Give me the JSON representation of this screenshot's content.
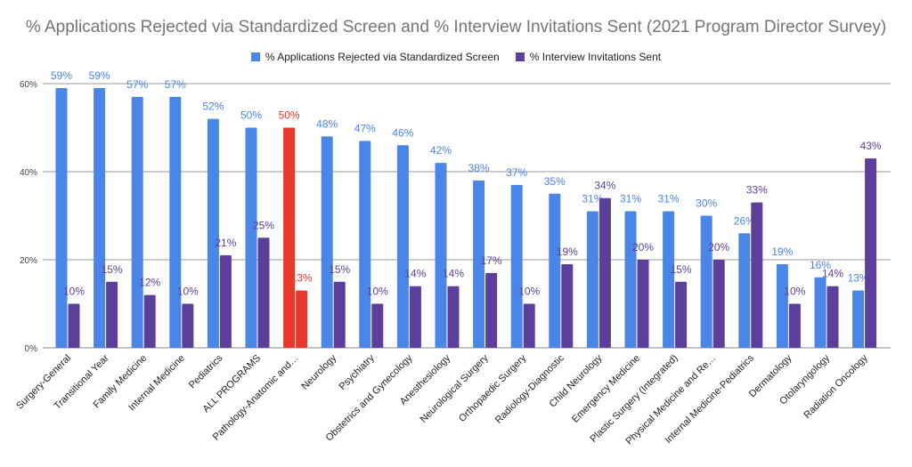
{
  "chart_data": {
    "type": "bar",
    "title": "% Applications Rejected via Standardized Screen and % Interview Invitations Sent (2021 Program Director Survey)",
    "categories": [
      "Surgery-General",
      "Transitional Year",
      "Family Medicine",
      "Internal Medicine",
      "Pediatrics",
      "ALL PROGRAMS",
      "Pathology-Anatomic and…",
      "Neurology",
      "Psychiatry",
      "Obstetrics and Gynecology",
      "Anesthesiology",
      "Neurological Surgery",
      "Orthopaedic Surgery",
      "Radiology-Diagnostic",
      "Child Neurology",
      "Emergency Medicine",
      "Plastic Surgery (Integrated)",
      "Physical Medicine and Re…",
      "Internal Medicine-Pediatrics",
      "Dermatology",
      "Otolaryngology",
      "Radiation Oncology"
    ],
    "series": [
      {
        "name": "% Applications Rejected via Standardized Screen",
        "color": "#4a86e8",
        "values": [
          59,
          59,
          57,
          57,
          52,
          50,
          50,
          48,
          47,
          46,
          42,
          38,
          37,
          35,
          31,
          31,
          31,
          30,
          26,
          19,
          16,
          13
        ]
      },
      {
        "name": "% Interview Invitations Sent",
        "color": "#5b3f9b",
        "values": [
          10,
          15,
          12,
          10,
          21,
          25,
          13,
          15,
          10,
          14,
          14,
          17,
          10,
          19,
          34,
          20,
          15,
          20,
          33,
          10,
          14,
          43
        ]
      }
    ],
    "highlight": {
      "category": "Pathology-Anatomic and…",
      "color": "#e8392b"
    },
    "yticks": [
      "0%",
      "20%",
      "40%",
      "60%"
    ],
    "ylim": [
      0,
      60
    ],
    "grid": true,
    "legend": "top"
  }
}
